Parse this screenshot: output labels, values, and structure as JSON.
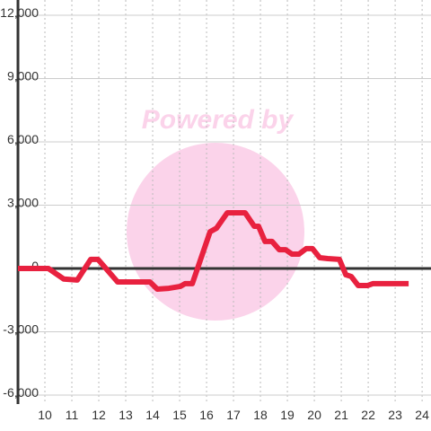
{
  "chart_data": {
    "type": "line",
    "watermark": "Powered by",
    "x": [
      9.0,
      10.13,
      10.7,
      11.2,
      11.7,
      11.97,
      12.7,
      13.1,
      13.9,
      14.17,
      14.6,
      15.03,
      15.2,
      15.47,
      16.13,
      16.37,
      16.77,
      17.43,
      17.77,
      17.93,
      18.17,
      18.43,
      18.7,
      18.93,
      19.17,
      19.43,
      19.7,
      19.93,
      20.2,
      20.5,
      20.93,
      21.17,
      21.37,
      21.63,
      21.97,
      22.17,
      23.5
    ],
    "series": [
      {
        "color": "#e8213f",
        "values": [
          0,
          0,
          -500,
          -550,
          430,
          430,
          -640,
          -640,
          -640,
          -980,
          -940,
          -850,
          -720,
          -720,
          1740,
          1910,
          2640,
          2640,
          2000,
          2000,
          1280,
          1280,
          890,
          890,
          680,
          680,
          940,
          940,
          510,
          470,
          430,
          -300,
          -380,
          -810,
          -810,
          -720,
          -720
        ]
      }
    ],
    "xlim": [
      9,
      24.33
    ],
    "xticks": [
      10,
      11,
      12,
      13,
      14,
      15,
      16,
      17,
      18,
      19,
      20,
      21,
      22,
      23,
      24
    ],
    "ylim": [
      -6000,
      12000
    ],
    "yticks": [
      {
        "value": -6000,
        "label": "-6,000"
      },
      {
        "value": -3000,
        "label": "-3,000"
      },
      0,
      {
        "value": 3000,
        "label": "3,000"
      },
      {
        "value": 6000,
        "label": "6,000"
      },
      {
        "value": 9000,
        "label": "9,000"
      },
      {
        "value": 12000,
        "label": "12,000"
      }
    ],
    "grid": true
  }
}
